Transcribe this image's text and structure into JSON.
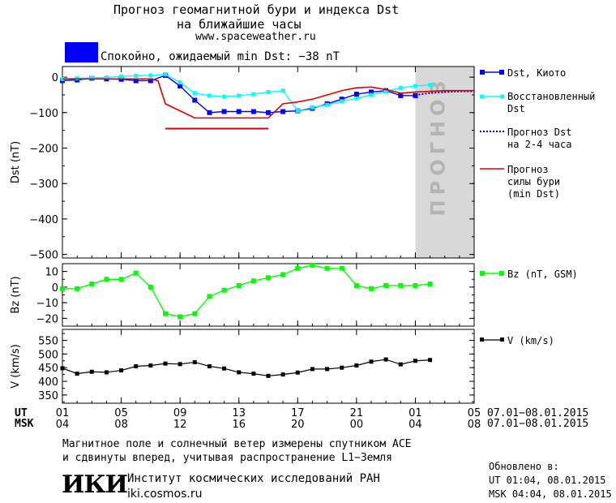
{
  "header": {
    "title_line1": "Прогноз геомагнитной бури и индекса Dst",
    "title_line2": "на ближайшие часы",
    "url": "www.spaceweather.ru",
    "status_text": "Спокойно, ожидаемый min Dst: −38 nT",
    "status_color": "#0000ff"
  },
  "colors": {
    "dst_kyoto": "#0000ff",
    "dst_restored": "#00ffff",
    "forecast_dst": "#0000c0",
    "storm_forecast": "#e00000",
    "bz": "#00ff00",
    "speed": "#000000",
    "forecast_band": "#d8d8d8"
  },
  "chart_data": [
    {
      "type": "line",
      "panel": "dst",
      "ylabel": "Dst (nT)",
      "yticks": [
        "0",
        "−100",
        "−200",
        "−300",
        "−400",
        "−500"
      ],
      "ytick_values": [
        0,
        -100,
        -200,
        -300,
        -400,
        -500
      ],
      "ylim": [
        -510,
        30
      ],
      "xlim_hours_ut": [
        1,
        29
      ],
      "forecast_band_label": "ПРОГНОЗ",
      "forecast_band_hours_ut": [
        25,
        29
      ],
      "series": [
        {
          "name": "Dst, Киото",
          "x": [
            1,
            2,
            3,
            4,
            5,
            6,
            7,
            8,
            9,
            10,
            11,
            12,
            13,
            14,
            15,
            16,
            17,
            18,
            19,
            20,
            21,
            22,
            23,
            24,
            25
          ],
          "values": [
            -10,
            -8,
            -3,
            -5,
            -6,
            -10,
            -10,
            5,
            -25,
            -65,
            -100,
            -97,
            -97,
            -97,
            -100,
            -97,
            -95,
            -88,
            -75,
            -62,
            -48,
            -42,
            -38,
            -52,
            -52
          ]
        },
        {
          "name": "Восстановленный Dst",
          "x": [
            1,
            2,
            3,
            4,
            5,
            6,
            7,
            8,
            9,
            10,
            11,
            12,
            13,
            14,
            15,
            16,
            17,
            18,
            19,
            20,
            21,
            22,
            23,
            24,
            25,
            26
          ],
          "values": [
            -5,
            -3,
            -2,
            -1,
            2,
            4,
            5,
            8,
            -15,
            -45,
            -52,
            -55,
            -52,
            -48,
            -42,
            -38,
            -95,
            -85,
            -78,
            -68,
            -60,
            -50,
            -40,
            -30,
            -25,
            -22
          ]
        },
        {
          "name": "Прогноз Dst на 2-4 часа",
          "x": [
            25,
            26,
            27,
            28,
            29
          ],
          "values": [
            -50,
            -45,
            -42,
            -40,
            -40
          ]
        },
        {
          "name": "Прогноз силы бури (min Dst)",
          "x": [
            1,
            2,
            3,
            4,
            5,
            6,
            7,
            7.5,
            8,
            9,
            10,
            11,
            12,
            13,
            14,
            15,
            16,
            17,
            18,
            19,
            20,
            21,
            22,
            23,
            24,
            25,
            26,
            27,
            28,
            29
          ],
          "values": [
            -5,
            -5,
            -5,
            -5,
            -5,
            -5,
            -5,
            -10,
            -75,
            -95,
            -115,
            -115,
            -115,
            -115,
            -115,
            -115,
            -75,
            -70,
            -62,
            -50,
            -38,
            -30,
            -28,
            -35,
            -45,
            -42,
            -40,
            -38,
            -38,
            -38
          ]
        },
        {
          "name": "min Dst",
          "x": [
            8,
            15
          ],
          "values": [
            -145,
            -145
          ]
        }
      ]
    },
    {
      "type": "line",
      "panel": "bz",
      "ylabel": "Bz (nT)",
      "yticks": [
        "10",
        "0",
        "−10",
        "−20"
      ],
      "ytick_values": [
        10,
        0,
        -10,
        -20
      ],
      "ylim": [
        -25,
        15
      ],
      "series": [
        {
          "name": "Bz (nT, GSM)",
          "x": [
            1,
            2,
            3,
            4,
            5,
            6,
            7,
            8,
            9,
            10,
            11,
            12,
            13,
            14,
            15,
            16,
            17,
            18,
            19,
            20,
            21,
            22,
            23,
            24,
            25,
            26
          ],
          "values": [
            -1,
            -1,
            2,
            5,
            5,
            9,
            0,
            -17,
            -19,
            -17,
            -6,
            -2,
            1,
            4,
            6,
            8,
            12,
            14,
            12,
            12,
            1,
            -1,
            1,
            1,
            1,
            2
          ]
        }
      ]
    },
    {
      "type": "line",
      "panel": "speed",
      "ylabel": "V (km/s)",
      "yticks": [
        "550",
        "500",
        "450",
        "400",
        "350"
      ],
      "ytick_values": [
        550,
        500,
        450,
        400,
        350
      ],
      "ylim": [
        320,
        590
      ],
      "series": [
        {
          "name": "V (km/s)",
          "x": [
            1,
            2,
            3,
            4,
            5,
            6,
            7,
            8,
            9,
            10,
            11,
            12,
            13,
            14,
            15,
            16,
            17,
            18,
            19,
            20,
            21,
            22,
            23,
            24,
            25,
            26
          ],
          "values": [
            448,
            428,
            435,
            433,
            440,
            455,
            458,
            465,
            463,
            470,
            455,
            447,
            433,
            428,
            420,
            425,
            432,
            445,
            445,
            450,
            458,
            472,
            480,
            462,
            475,
            478
          ]
        }
      ]
    }
  ],
  "xaxis": {
    "ut_label": "UT",
    "msk_label": "MSK",
    "ut_ticks": [
      "01",
      "05",
      "09",
      "13",
      "17",
      "21",
      "01",
      "05"
    ],
    "msk_ticks": [
      "04",
      "08",
      "12",
      "16",
      "20",
      "00",
      "04",
      "08"
    ],
    "tick_hours": [
      1,
      5,
      9,
      13,
      17,
      21,
      25,
      29
    ],
    "date_range_ut": "07.01−08.01.2015",
    "date_range_msk": "07.01−08.01.2015"
  },
  "legend": {
    "dst_kyoto": "Dst, Киото",
    "restored_line1": "Восстановленный",
    "restored_line2": "Dst",
    "forecast_line1": "Прогноз Dst",
    "forecast_line2": "на 2-4 часа",
    "storm_line1": "Прогноз",
    "storm_line2": "силы бури",
    "storm_line3": "(min Dst)",
    "bz": "Bz (nT, GSM)",
    "speed": "V (km/s)"
  },
  "footer": {
    "note_line1": "Магнитное поле и солнечный ветер измерены спутником ACE",
    "note_line2": "и сдвинуты вперед, учитывая распространение L1−Земля",
    "institute": "Институт космических исследований РАН",
    "site": "iki.cosmos.ru",
    "logo_text": "ИКИ",
    "updated_label": "Обновлено в:",
    "updated_ut": "UT  01:04, 08.01.2015",
    "updated_msk": "MSK 04:04, 08.01.2015"
  }
}
